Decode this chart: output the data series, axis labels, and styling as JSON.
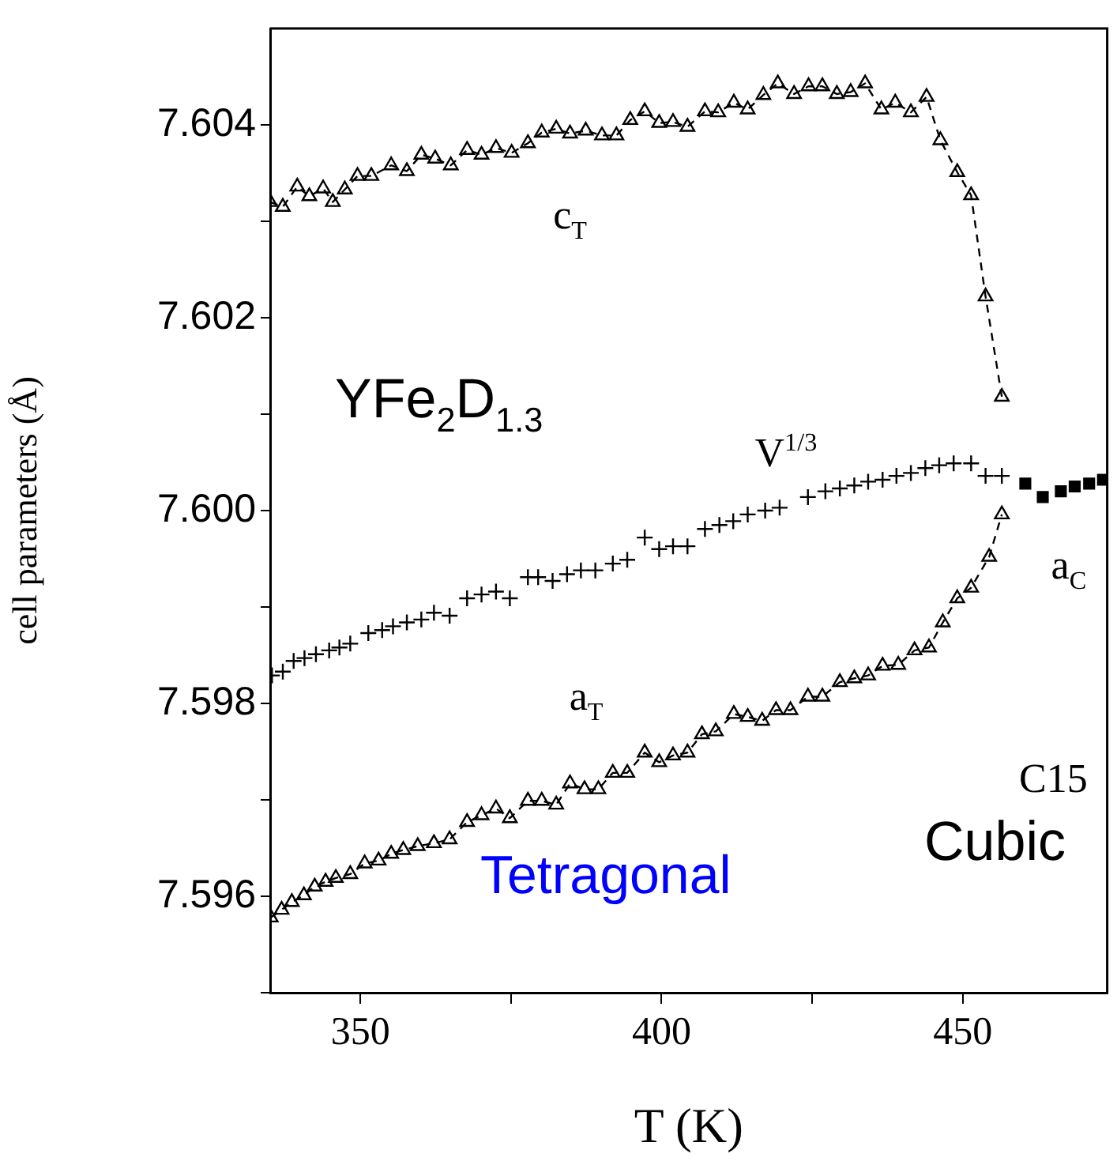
{
  "chart_data": {
    "type": "line",
    "xlabel": "T (K)",
    "ylabel": "cell parameters (Å)",
    "xlim": [
      335,
      474
    ],
    "xticks": [
      350,
      {
        "value": 375,
        "label": null
      },
      400,
      {
        "value": 425,
        "label": null
      },
      450
    ],
    "ylim": [
      7.595,
      7.605
    ],
    "yticks": [
      {
        "value": 7.595,
        "label": null
      },
      7.596,
      {
        "value": 7.597,
        "label": null
      },
      7.598,
      {
        "value": 7.599,
        "label": null
      },
      {
        "value": 7.6,
        "label": "7.600"
      },
      {
        "value": 7.601,
        "label": null
      },
      7.602,
      {
        "value": 7.603,
        "label": null
      },
      7.604
    ],
    "legend": false,
    "annotations": [
      "YFe$_{2}$D$_{1.3}$",
      "Tetragonal",
      "C15",
      "Cubic"
    ],
    "series": [
      {
        "name": "c$_{T}$",
        "type": "line",
        "marker": "triangle",
        "line_style": "dashed",
        "color": "#000000",
        "x": [
          335,
          337.1,
          339.5,
          341.5,
          343.8,
          345.4,
          347.4,
          349.5,
          351.8,
          355.1,
          357.7,
          360.1,
          362.4,
          365.0,
          367.7,
          370.1,
          372.5,
          375.1,
          377.8,
          380.1,
          382.5,
          384.8,
          387.4,
          390.1,
          392.5,
          394.8,
          397.2,
          399.6,
          401.9,
          404.3,
          407.2,
          409.4,
          412.0,
          414.3,
          416.9,
          419.3,
          422.0,
          424.4,
          426.7,
          429.1,
          431.4,
          433.8,
          436.5,
          438.8,
          441.4,
          444.0,
          446.3,
          449.1,
          451.4,
          453.8,
          456.5
        ],
        "values": [
          7.6032,
          7.60315,
          7.60336,
          7.60326,
          7.60334,
          7.6032,
          7.60333,
          7.60347,
          7.60347,
          7.60358,
          7.60352,
          7.60369,
          7.60365,
          7.60358,
          7.60374,
          7.60369,
          7.60376,
          7.60371,
          7.60381,
          7.60392,
          7.60396,
          7.60391,
          7.60394,
          7.60389,
          7.60389,
          7.60405,
          7.60414,
          7.60402,
          7.60403,
          7.60398,
          7.60414,
          7.60413,
          7.60423,
          7.60416,
          7.60431,
          7.60443,
          7.60432,
          7.6044,
          7.6044,
          7.60432,
          7.60434,
          7.60443,
          7.60416,
          7.60423,
          7.60413,
          7.60429,
          7.60384,
          7.60351,
          7.60327,
          7.60222,
          7.60118
        ]
      },
      {
        "name": "V$^{1/3}$",
        "type": "scatter",
        "marker": "cross",
        "color": "#000000",
        "x": [
          335.3,
          337.1,
          338.9,
          340.7,
          342.6,
          344.8,
          346.5,
          348.3,
          351.3,
          353.6,
          355.4,
          357.7,
          360.1,
          362.2,
          364.8,
          367.7,
          370.1,
          372.5,
          374.8,
          377.8,
          379.5,
          381.9,
          384.3,
          386.6,
          389.0,
          391.9,
          394.3,
          397.2,
          399.6,
          401.9,
          404.3,
          407.2,
          409.6,
          411.9,
          414.3,
          417.2,
          419.6,
          424.3,
          427.2,
          429.6,
          432.0,
          434.3,
          436.7,
          439.0,
          441.4,
          443.8,
          446.1,
          448.5,
          451.4,
          453.8,
          456.5
        ],
        "values": [
          7.59829,
          7.59833,
          7.59844,
          7.59847,
          7.59851,
          7.59855,
          7.59858,
          7.59862,
          7.59873,
          7.59876,
          7.5988,
          7.59884,
          7.59887,
          7.59894,
          7.59891,
          7.59909,
          7.59913,
          7.59916,
          7.59909,
          7.59931,
          7.59931,
          7.59927,
          7.59934,
          7.59938,
          7.59938,
          7.59945,
          7.59949,
          7.59972,
          7.5996,
          7.59963,
          7.59963,
          7.59981,
          7.59985,
          7.59989,
          7.59996,
          7.6,
          7.60003,
          7.60014,
          7.6002,
          7.60023,
          7.60026,
          7.6003,
          7.60032,
          7.60036,
          7.60039,
          7.60044,
          7.60047,
          7.60049,
          7.60049,
          7.60036,
          7.60036
        ]
      },
      {
        "name": "a$_{T}$",
        "type": "line",
        "marker": "triangle",
        "line_style": "dashed",
        "color": "#000000",
        "x": [
          335.1,
          336.9,
          338.6,
          340.6,
          342.4,
          344.2,
          345.9,
          348.3,
          350.7,
          353.0,
          355.1,
          357.1,
          359.5,
          362.2,
          364.8,
          367.7,
          370.1,
          372.5,
          374.8,
          377.8,
          380.1,
          382.5,
          384.8,
          387.2,
          389.5,
          391.9,
          394.3,
          397.2,
          399.6,
          401.9,
          404.3,
          406.7,
          409.0,
          412.0,
          414.3,
          416.7,
          419.0,
          421.4,
          424.3,
          426.7,
          429.6,
          432.0,
          434.3,
          436.7,
          439.3,
          442.0,
          444.4,
          446.7,
          449.1,
          451.4,
          454.4,
          456.5
        ],
        "values": [
          7.59578,
          7.59586,
          7.59594,
          7.59601,
          7.5961,
          7.59615,
          7.59619,
          7.59623,
          7.59634,
          7.59637,
          7.59644,
          7.59648,
          7.59652,
          7.59655,
          7.59659,
          7.59677,
          7.59684,
          7.59691,
          7.59681,
          7.59699,
          7.59699,
          7.59695,
          7.59717,
          7.59711,
          7.59711,
          7.59728,
          7.59728,
          7.59749,
          7.59739,
          7.59746,
          7.59749,
          7.59768,
          7.59771,
          7.59789,
          7.59786,
          7.59782,
          7.59793,
          7.59793,
          7.59807,
          7.59807,
          7.59822,
          7.59826,
          7.59829,
          7.59839,
          7.5984,
          7.59855,
          7.59858,
          7.59884,
          7.59909,
          7.5992,
          7.59952,
          7.59996
        ]
      },
      {
        "name": "a$_{C}$",
        "type": "scatter",
        "marker": "square",
        "color": "#000000",
        "x": [
          460.4,
          463.3,
          466.3,
          468.6,
          471.0,
          473.3
        ],
        "values": [
          7.60028,
          7.60014,
          7.6002,
          7.60025,
          7.60028,
          7.60032
        ]
      }
    ]
  }
}
